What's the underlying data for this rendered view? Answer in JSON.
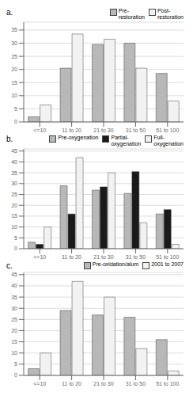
{
  "chart_data": [
    {
      "type": "bar",
      "title": "a.",
      "categories": [
        "<=10",
        "11 to 20",
        "21 to 30",
        "31 to 50",
        "51 to 100"
      ],
      "series": [
        {
          "name": "Pre-\nrestoration",
          "color": "#b8b8b8",
          "values": [
            2,
            20.5,
            29.5,
            30,
            18.5
          ]
        },
        {
          "name": "Post-\nrestoration",
          "color": "#f2f2f2",
          "values": [
            6.5,
            33.5,
            31.5,
            20.5,
            8
          ]
        }
      ],
      "ylim": [
        0,
        38
      ],
      "yticks": [
        0,
        5,
        10,
        15,
        20,
        25,
        30,
        35
      ],
      "grid": true,
      "legend": "upper right"
    },
    {
      "type": "bar",
      "title": "b.",
      "categories": [
        "<=10",
        "11 to 20",
        "21 to 30",
        "31 to 50",
        "51 to 100"
      ],
      "series": [
        {
          "name": "Pre-oxygenation",
          "color": "#b8b8b8",
          "values": [
            3,
            29,
            27,
            25.5,
            16
          ]
        },
        {
          "name": "Partial-\noxygenation",
          "color": "#1a1a1a",
          "values": [
            2,
            16,
            28.5,
            35.5,
            18
          ]
        },
        {
          "name": "Full-\noxygenation",
          "color": "#f2f2f2",
          "values": [
            10,
            42,
            35,
            12,
            2
          ]
        }
      ],
      "ylim": [
        0,
        46
      ],
      "yticks": [
        0,
        5,
        10,
        15,
        20,
        25,
        30,
        35,
        40,
        45
      ],
      "grid": true,
      "legend": "upper right"
    },
    {
      "type": "bar",
      "title": "c.",
      "categories": [
        "<=10",
        "11 to 20",
        "21 to 30",
        "31 to 50",
        "51 to 100"
      ],
      "series": [
        {
          "name": "Pre-oxidation/alum",
          "color": "#b8b8b8",
          "values": [
            3,
            29,
            27,
            26,
            16
          ]
        },
        {
          "name": "2001 to 2007",
          "color": "#f2f2f2",
          "values": [
            10,
            42,
            35,
            12,
            2
          ]
        }
      ],
      "ylim": [
        0,
        46
      ],
      "yticks": [
        0,
        5,
        10,
        15,
        20,
        25,
        30,
        35,
        40,
        45
      ],
      "grid": true,
      "legend": "upper right"
    }
  ]
}
